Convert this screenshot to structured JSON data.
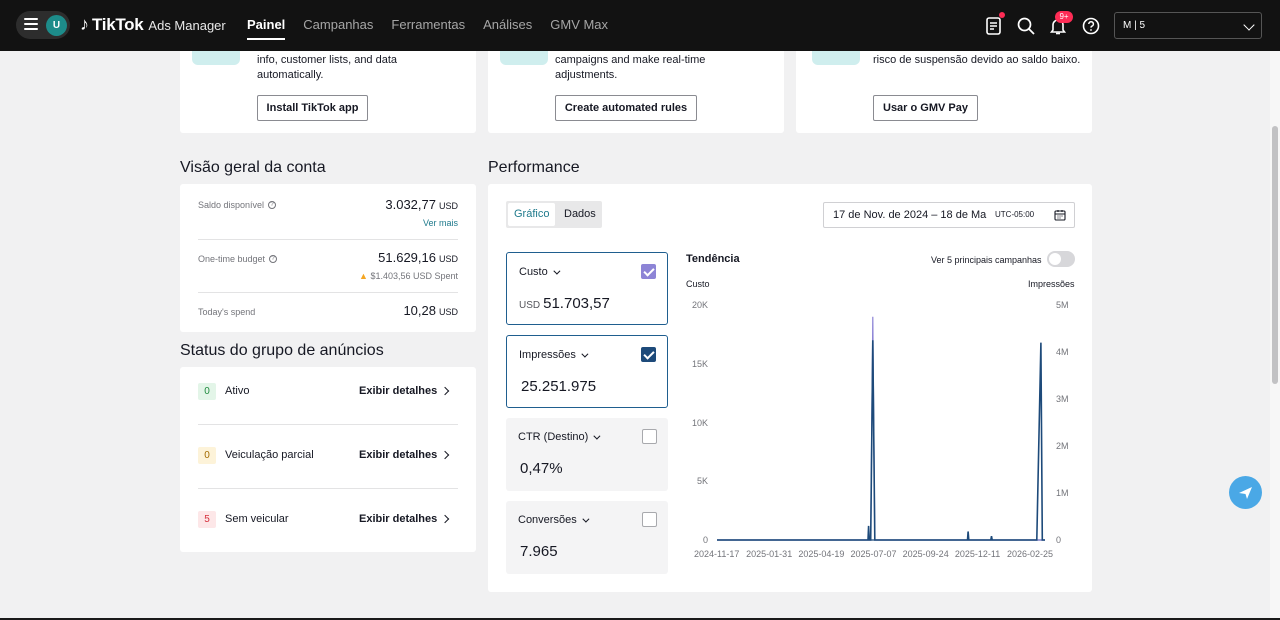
{
  "app": {
    "brand": "TikTok",
    "product": "Ads Manager",
    "avatar_letter": "U",
    "nav": [
      "Painel",
      "Campanhas",
      "Ferramentas",
      "Análises",
      "GMV Max"
    ],
    "active_nav": "Painel",
    "notification_badge": "9+",
    "account_name": "M | 5"
  },
  "promos": [
    {
      "text": "info, customer lists, and data automatically.",
      "button": "Install TikTok app"
    },
    {
      "text": "campaigns and make real-time adjustments.",
      "button": "Create automated rules"
    },
    {
      "text": "risco de suspensão devido ao saldo baixo.",
      "button": "Usar o GMV Pay"
    }
  ],
  "overview": {
    "title": "Visão geral da conta",
    "balance_label": "Saldo disponível",
    "balance_value": "3.032,77",
    "balance_currency": "USD",
    "see_more": "Ver mais",
    "budget_label": "One-time budget",
    "budget_value": "51.629,16",
    "budget_currency": "USD",
    "budget_spent": "$1.403,56 USD Spent",
    "today_label": "Today's spend",
    "today_value": "10,28",
    "today_currency": "USD"
  },
  "status": {
    "title": "Status do grupo de anúncios",
    "details_label": "Exibir detalhes",
    "rows": [
      {
        "count": "0",
        "label": "Ativo",
        "color": "#e3f5e8",
        "text_color": "#1e8a3d"
      },
      {
        "count": "0",
        "label": "Veiculação parcial",
        "color": "#fdf3d9",
        "text_color": "#a36b00"
      },
      {
        "count": "5",
        "label": "Sem veicular",
        "color": "#fde7e8",
        "text_color": "#d6313d"
      }
    ]
  },
  "performance": {
    "title": "Performance",
    "tabs": [
      "Gráfico",
      "Dados"
    ],
    "active_tab": "Gráfico",
    "date_range": "17 de Nov. de 2024 – 18 de Ma",
    "timezone": "UTC-05:00",
    "metrics": [
      {
        "name": "Custo",
        "prefix": "USD",
        "value": "51.703,57",
        "checked": true
      },
      {
        "name": "Impressões",
        "prefix": "",
        "value": "25.251.975",
        "checked": true
      },
      {
        "name": "CTR (Destino)",
        "prefix": "",
        "value": "0,47%",
        "checked": false
      },
      {
        "name": "Conversões",
        "prefix": "",
        "value": "7.965",
        "checked": false
      }
    ],
    "trend_title": "Tendência",
    "top_campaigns_label": "Ver 5 principais campanhas"
  },
  "chart_data": {
    "type": "line",
    "left_axis_label": "Custo",
    "right_axis_label": "Impressões",
    "y_left_ticks": [
      "20K",
      "15K",
      "10K",
      "5K",
      "0"
    ],
    "y_right_ticks": [
      "5M",
      "4M",
      "3M",
      "2M",
      "1M",
      "0"
    ],
    "y_left_lim": [
      0,
      20000
    ],
    "y_right_lim": [
      0,
      5000000
    ],
    "x_ticks": [
      "2024-11-17",
      "2025-01-31",
      "2025-04-19",
      "2025-07-07",
      "2025-09-24",
      "2025-12-11",
      "2026-02-25"
    ],
    "series": [
      {
        "name": "Custo",
        "color": "#8d84d6",
        "points": [
          [
            "2024-11-17",
            0
          ],
          [
            "2025-06-29",
            0
          ],
          [
            "2025-07-02",
            19000
          ],
          [
            "2025-07-05",
            0
          ],
          [
            "2026-03-10",
            0
          ]
        ]
      },
      {
        "name": "Impressões",
        "color": "#1d4a7a",
        "points": [
          [
            "2024-11-17",
            0
          ],
          [
            "2025-06-25",
            0
          ],
          [
            "2025-06-26",
            300000
          ],
          [
            "2025-06-27",
            0
          ],
          [
            "2025-06-29",
            0
          ],
          [
            "2025-07-02",
            4250000
          ],
          [
            "2025-07-05",
            0
          ],
          [
            "2025-11-17",
            0
          ],
          [
            "2025-11-18",
            180000
          ],
          [
            "2025-11-19",
            0
          ],
          [
            "2025-12-21",
            0
          ],
          [
            "2025-12-22",
            80000
          ],
          [
            "2025-12-23",
            0
          ],
          [
            "2026-02-26",
            0
          ],
          [
            "2026-03-04",
            4200000
          ],
          [
            "2026-03-06",
            0
          ],
          [
            "2026-03-10",
            0
          ]
        ]
      }
    ]
  }
}
